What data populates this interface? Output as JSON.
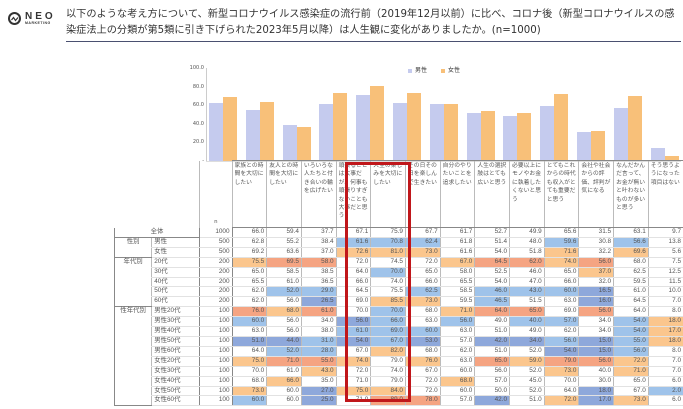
{
  "logo": {
    "name": "NEO",
    "sub": "MARKETING"
  },
  "title": "以下のような考え方について、新型コロナウイルス感染症の流行前（2019年12月以前）に比べ、コロナ後（新型コロナウイルスの感染症法上の分類が第5類に引き下げられた2023年5月以降）は人生観に変化がありましたか。(n=1000)",
  "chart_data": {
    "type": "bar",
    "title": "",
    "xlabel": "",
    "ylabel": "",
    "ylim": [
      0,
      100
    ],
    "yticks": [
      "-",
      "20.0",
      "40.0",
      "60.0",
      "80.0",
      "100.0"
    ],
    "legend": [
      "男性",
      "女性"
    ],
    "legend_position": "top",
    "categories": [
      "家族との時間を大切にしたい",
      "友人との時間を大切にしたい",
      "いろいろな人たちと付き合いの輪を広げたい",
      "頑張ることは大事だが、何事も頑張りすぎないことも大事だと思う",
      "人生の楽しみを大切にしたい",
      "その日その日を楽しんで生きたい",
      "自分のやりたいことを追求したい",
      "人生の選択肢はとても広いと思う",
      "必要以上にモノやお金に執着したくないと思う",
      "とてもこれからの時代も収入がとても重要だと思う",
      "会社や社会からの評価、評判が気になる",
      "なんだかんだ言って、お金が無いと叶わないものが多いと思う",
      "そう思うようになった項目はない"
    ],
    "series": [
      {
        "name": "男性",
        "color": "#c5cbee",
        "values": [
          62.8,
          55.2,
          38.4,
          61.6,
          70.8,
          62.4,
          61.8,
          51.4,
          48.0,
          59.6,
          30.8,
          56.6,
          13.8
        ]
      },
      {
        "name": "女性",
        "color": "#f8c079",
        "values": [
          69.2,
          63.6,
          37.0,
          72.6,
          81.0,
          73.0,
          61.6,
          54.0,
          51.8,
          71.6,
          32.2,
          69.6,
          5.6
        ]
      }
    ]
  },
  "table": {
    "n_label": "n",
    "headers": [
      "家族との時間を大切にしたい",
      "友人との時間を大切にしたい",
      "いろいろな人たちと付き合いの輪を広げたい",
      "頑張ることは大事だが、何事も頑張りすぎないことも大事だと思う",
      "人生の楽しみを大切にしたい",
      "その日その日を楽しんで生きたい",
      "自分のやりたいことを追求したい",
      "人生の選択肢はとても広いと思う",
      "必要以上にモノやお金に執着したくないと思う",
      "とてもこれからの時代も収入がとても重要だと思う",
      "会社や社会からの評価、評判が気になる",
      "なんだかんだ言って、お金が無いと叶わないものが多いと思う",
      "そう思うようになった項目はない"
    ],
    "rows": [
      {
        "group": "",
        "label": "全体",
        "n": "1000",
        "values": [
          "66.0",
          "59.4",
          "37.7",
          "67.1",
          "75.9",
          "67.7",
          "61.7",
          "52.7",
          "49.9",
          "65.6",
          "31.5",
          "63.1",
          "9.7"
        ],
        "colors": [
          "",
          "",
          "",
          "",
          "",
          "",
          "",
          "",
          "",
          "",
          "",
          "",
          ""
        ]
      },
      {
        "group": "性別",
        "label": "男性",
        "n": "500",
        "values": [
          "62.8",
          "55.2",
          "38.4",
          "61.6",
          "70.8",
          "62.4",
          "61.8",
          "51.4",
          "48.0",
          "59.6",
          "30.8",
          "56.6",
          "13.8"
        ],
        "colors": [
          "",
          "",
          "",
          "bl1",
          "bl1",
          "bl1",
          "",
          "",
          "",
          "bl1",
          "",
          "bl1",
          ""
        ]
      },
      {
        "group": "",
        "label": "女性",
        "n": "500",
        "values": [
          "69.2",
          "63.6",
          "37.0",
          "72.6",
          "81.0",
          "73.0",
          "61.6",
          "54.0",
          "51.8",
          "71.6",
          "32.2",
          "69.6",
          "5.6"
        ],
        "colors": [
          "",
          "",
          "",
          "or2",
          "or2",
          "or2",
          "",
          "",
          "",
          "or2",
          "",
          "or2",
          ""
        ]
      },
      {
        "group": "年代別",
        "label": "20代",
        "n": "200",
        "values": [
          "75.5",
          "69.5",
          "58.0",
          "72.0",
          "74.5",
          "72.0",
          "67.0",
          "64.5",
          "62.0",
          "74.0",
          "56.0",
          "68.0",
          "7.5"
        ],
        "colors": [
          "or2",
          "or1",
          "or1",
          "",
          "",
          "",
          "or2",
          "or1",
          "or1",
          "or2",
          "or1",
          "",
          ""
        ]
      },
      {
        "group": "",
        "label": "30代",
        "n": "200",
        "values": [
          "65.0",
          "58.5",
          "38.5",
          "64.0",
          "70.0",
          "65.0",
          "58.0",
          "52.5",
          "46.0",
          "65.0",
          "37.0",
          "62.5",
          "12.5"
        ],
        "colors": [
          "",
          "",
          "",
          "",
          "bl1",
          "",
          "",
          "",
          "",
          "",
          "or2",
          "",
          ""
        ]
      },
      {
        "group": "",
        "label": "40代",
        "n": "200",
        "values": [
          "65.5",
          "61.0",
          "36.5",
          "66.0",
          "74.0",
          "66.0",
          "65.5",
          "54.0",
          "47.0",
          "66.0",
          "32.0",
          "59.5",
          "11.5"
        ],
        "colors": [
          "",
          "",
          "",
          "",
          "",
          "",
          "",
          "",
          "",
          "",
          "",
          "",
          ""
        ]
      },
      {
        "group": "",
        "label": "50代",
        "n": "200",
        "values": [
          "62.0",
          "52.0",
          "29.0",
          "64.5",
          "75.5",
          "62.5",
          "58.5",
          "46.0",
          "43.0",
          "60.0",
          "16.5",
          "61.0",
          "10.0"
        ],
        "colors": [
          "",
          "bl1",
          "bl1",
          "",
          "",
          "bl1",
          "",
          "bl1",
          "bl1",
          "bl1",
          "bl2",
          "",
          ""
        ]
      },
      {
        "group": "",
        "label": "60代",
        "n": "200",
        "values": [
          "62.0",
          "56.0",
          "26.5",
          "69.0",
          "85.5",
          "73.0",
          "59.5",
          "46.5",
          "51.5",
          "63.0",
          "16.0",
          "64.5",
          "7.0"
        ],
        "colors": [
          "",
          "",
          "bl2",
          "",
          "or2",
          "or2",
          "",
          "bl1",
          "",
          "",
          "bl2",
          "",
          ""
        ]
      },
      {
        "group": "性年代別",
        "label": "男性20代",
        "n": "100",
        "values": [
          "76.0",
          "68.0",
          "61.0",
          "70.0",
          "70.0",
          "68.0",
          "71.0",
          "64.0",
          "65.0",
          "69.0",
          "56.0",
          "64.0",
          "8.0"
        ],
        "colors": [
          "or1",
          "or2",
          "or1",
          "",
          "bl1",
          "",
          "or2",
          "or1",
          "or1",
          "",
          "or1",
          "",
          ""
        ]
      },
      {
        "group": "",
        "label": "男性30代",
        "n": "100",
        "values": [
          "60.0",
          "56.0",
          "34.0",
          "56.0",
          "66.0",
          "63.0",
          "56.0",
          "49.0",
          "40.0",
          "57.0",
          "34.0",
          "54.0",
          "18.0"
        ],
        "colors": [
          "bl1",
          "",
          "",
          "bl2",
          "bl1",
          "",
          "bl1",
          "",
          "bl1",
          "bl1",
          "",
          "bl1",
          "or2"
        ]
      },
      {
        "group": "",
        "label": "男性40代",
        "n": "100",
        "values": [
          "63.0",
          "56.0",
          "38.0",
          "61.0",
          "69.0",
          "60.0",
          "63.0",
          "51.0",
          "49.0",
          "62.0",
          "34.0",
          "54.0",
          "17.0"
        ],
        "colors": [
          "",
          "",
          "",
          "bl1",
          "bl1",
          "bl1",
          "",
          "",
          "",
          "",
          "",
          "bl1",
          "or2"
        ]
      },
      {
        "group": "",
        "label": "男性50代",
        "n": "100",
        "values": [
          "51.0",
          "44.0",
          "31.0",
          "54.0",
          "67.0",
          "53.0",
          "57.0",
          "42.0",
          "34.0",
          "56.0",
          "15.0",
          "55.0",
          "18.0"
        ],
        "colors": [
          "bl2",
          "bl2",
          "bl1",
          "bl2",
          "bl1",
          "bl2",
          "",
          "bl2",
          "bl2",
          "bl1",
          "bl2",
          "bl1",
          "or2"
        ]
      },
      {
        "group": "",
        "label": "男性60代",
        "n": "100",
        "values": [
          "64.0",
          "52.0",
          "28.0",
          "67.0",
          "82.0",
          "68.0",
          "62.0",
          "51.0",
          "52.0",
          "54.0",
          "15.0",
          "56.0",
          "8.0"
        ],
        "colors": [
          "",
          "bl1",
          "bl1",
          "",
          "or2",
          "",
          "",
          "",
          "",
          "bl2",
          "bl2",
          "bl1",
          ""
        ]
      },
      {
        "group": "",
        "label": "女性20代",
        "n": "100",
        "values": [
          "75.0",
          "71.0",
          "55.0",
          "74.0",
          "79.0",
          "76.0",
          "63.0",
          "65.0",
          "59.0",
          "79.0",
          "56.0",
          "72.0",
          "7.0"
        ],
        "colors": [
          "or2",
          "or1",
          "or1",
          "or2",
          "",
          "or2",
          "",
          "or1",
          "or2",
          "or1",
          "or1",
          "or2",
          ""
        ]
      },
      {
        "group": "",
        "label": "女性30代",
        "n": "100",
        "values": [
          "70.0",
          "61.0",
          "43.0",
          "72.0",
          "74.0",
          "67.0",
          "60.0",
          "56.0",
          "52.0",
          "73.0",
          "40.0",
          "71.0",
          "7.0"
        ],
        "colors": [
          "",
          "",
          "or2",
          "",
          "",
          "",
          "",
          "",
          "",
          "or2",
          "",
          "or2",
          ""
        ]
      },
      {
        "group": "",
        "label": "女性40代",
        "n": "100",
        "values": [
          "68.0",
          "66.0",
          "35.0",
          "71.0",
          "79.0",
          "72.0",
          "68.0",
          "57.0",
          "45.0",
          "70.0",
          "30.0",
          "65.0",
          "6.0"
        ],
        "colors": [
          "",
          "or2",
          "",
          "",
          "",
          "",
          "or2",
          "",
          "",
          "",
          "",
          "",
          ""
        ]
      },
      {
        "group": "",
        "label": "女性50代",
        "n": "100",
        "values": [
          "73.0",
          "60.0",
          "27.0",
          "75.0",
          "84.0",
          "72.0",
          "60.0",
          "50.0",
          "52.0",
          "64.0",
          "18.0",
          "67.0",
          "2.0"
        ],
        "colors": [
          "or2",
          "",
          "bl2",
          "or2",
          "or2",
          "",
          "",
          "",
          "",
          "",
          "bl2",
          "",
          "bl1"
        ]
      },
      {
        "group": "",
        "label": "女性60代",
        "n": "100",
        "values": [
          "60.0",
          "60.0",
          "25.0",
          "71.0",
          "89.0",
          "78.0",
          "57.0",
          "42.0",
          "51.0",
          "72.0",
          "17.0",
          "73.0",
          "6.0"
        ],
        "colors": [
          "bl1",
          "",
          "bl2",
          "",
          "or1",
          "or1",
          "",
          "bl2",
          "",
          "or2",
          "bl2",
          "or2",
          ""
        ]
      }
    ]
  },
  "colors": {
    "male": "#c5cbee",
    "female": "#f8c079",
    "highlight": "#c0171b",
    "high_strong": "#f5a482",
    "high": "#fbc68d",
    "low": "#9fc3ea",
    "low_strong": "#8ea8db"
  }
}
